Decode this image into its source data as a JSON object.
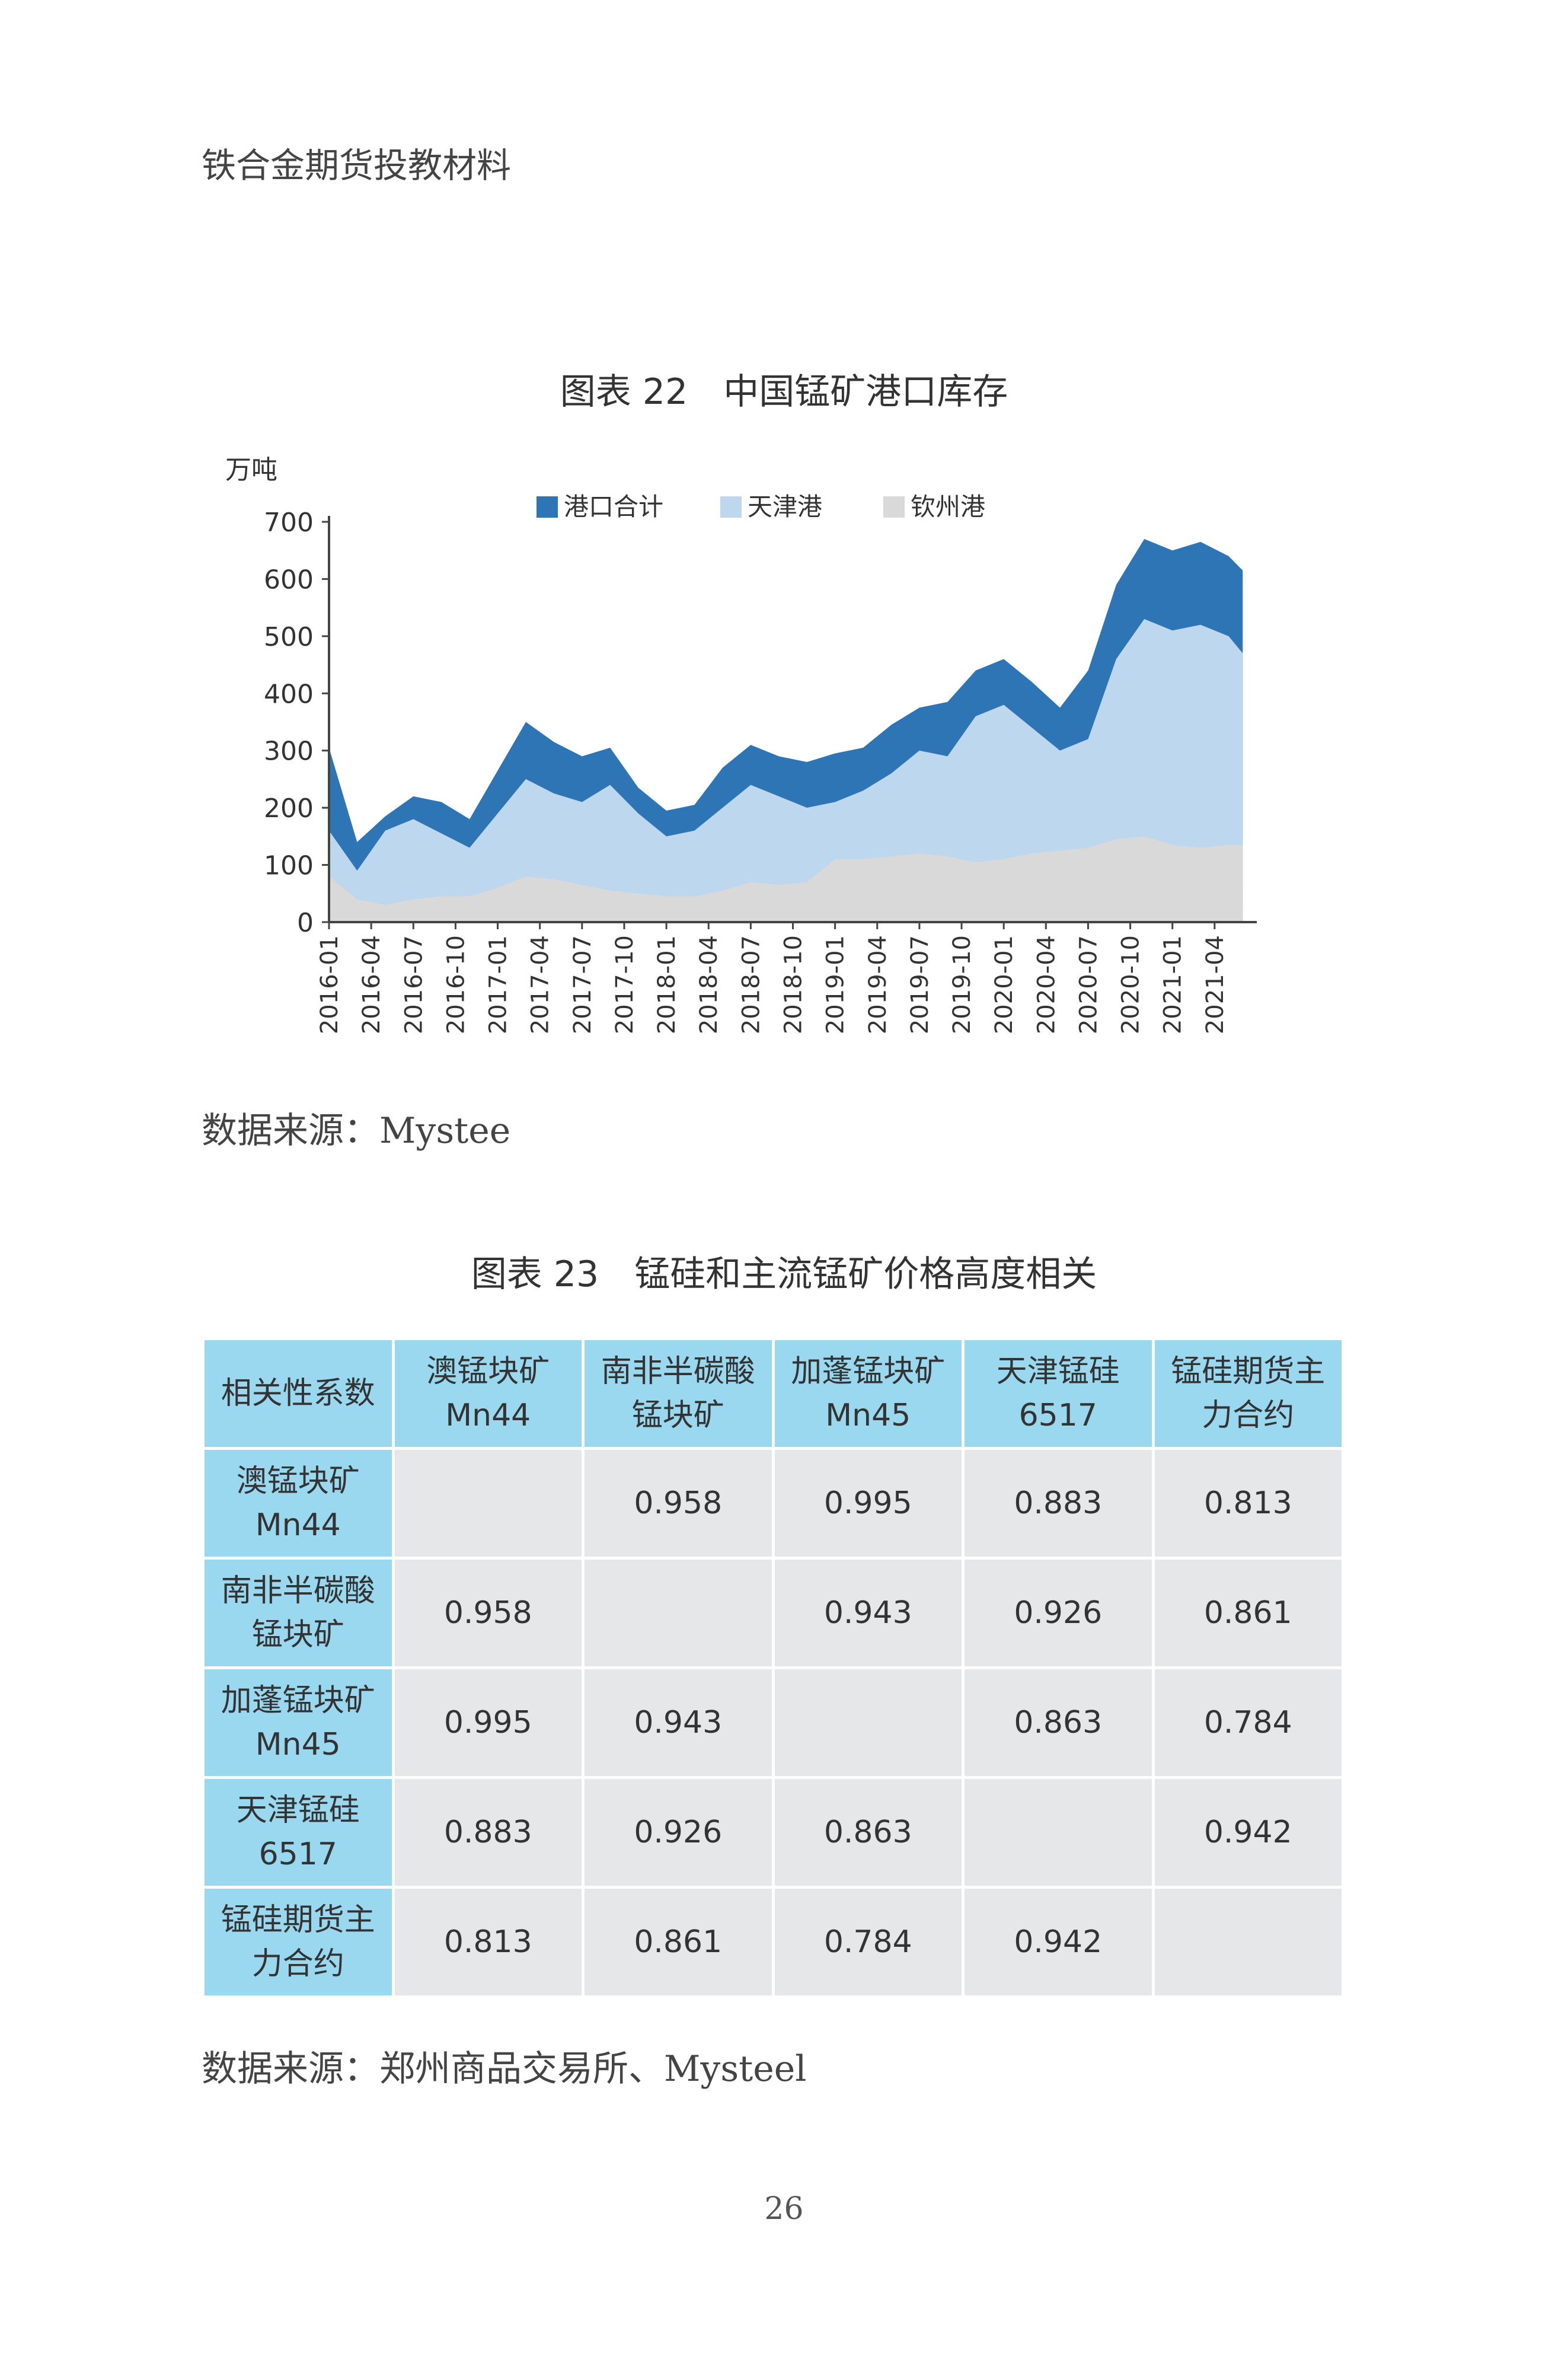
{
  "page": {
    "running_header": "铁合金期货投教材料",
    "page_number": "26"
  },
  "figure22": {
    "title": "图表 22　中国锰矿港口库存",
    "source": "数据来源：Mystee"
  },
  "chart_data": {
    "type": "area",
    "title": "图表 22　中国锰矿港口库存",
    "y_unit_label": "万吨",
    "ylim": [
      0,
      700
    ],
    "y_ticks": [
      0,
      100,
      200,
      300,
      400,
      500,
      600,
      700
    ],
    "x_ticks": [
      "2016-01",
      "2016-04",
      "2016-07",
      "2016-10",
      "2017-01",
      "2017-04",
      "2017-07",
      "2017-10",
      "2018-01",
      "2018-04",
      "2018-07",
      "2018-10",
      "2019-01",
      "2019-04",
      "2019-07",
      "2019-10",
      "2020-01",
      "2020-04",
      "2020-07",
      "2020-10",
      "2021-01",
      "2021-04"
    ],
    "legend_position": "top",
    "grid": false,
    "x": [
      "2016-01",
      "2016-03",
      "2016-05",
      "2016-07",
      "2016-09",
      "2016-11",
      "2017-01",
      "2017-03",
      "2017-05",
      "2017-07",
      "2017-09",
      "2017-11",
      "2018-01",
      "2018-03",
      "2018-05",
      "2018-07",
      "2018-09",
      "2018-11",
      "2019-01",
      "2019-03",
      "2019-05",
      "2019-07",
      "2019-09",
      "2019-11",
      "2020-01",
      "2020-03",
      "2020-05",
      "2020-07",
      "2020-09",
      "2020-11",
      "2021-01",
      "2021-03",
      "2021-05",
      "2021-06"
    ],
    "series": [
      {
        "name": "港口合计",
        "color": "#2e75b6",
        "values": [
          305,
          140,
          185,
          220,
          210,
          180,
          265,
          350,
          315,
          290,
          305,
          235,
          195,
          205,
          270,
          310,
          290,
          280,
          295,
          305,
          345,
          375,
          385,
          440,
          460,
          420,
          375,
          440,
          590,
          670,
          650,
          665,
          640,
          615
        ]
      },
      {
        "name": "天津港",
        "color": "#bdd7ee",
        "values": [
          160,
          90,
          160,
          180,
          155,
          130,
          190,
          250,
          225,
          210,
          240,
          190,
          150,
          160,
          200,
          240,
          220,
          200,
          210,
          230,
          260,
          300,
          290,
          360,
          380,
          340,
          300,
          320,
          460,
          530,
          510,
          520,
          500,
          470
        ]
      },
      {
        "name": "钦州港",
        "color": "#d9d9d9",
        "values": [
          80,
          40,
          30,
          40,
          45,
          45,
          60,
          80,
          75,
          65,
          55,
          50,
          45,
          45,
          55,
          70,
          65,
          70,
          110,
          110,
          115,
          120,
          115,
          105,
          110,
          120,
          125,
          130,
          145,
          150,
          135,
          130,
          135,
          135
        ]
      }
    ]
  },
  "figure23": {
    "title": "图表 23　锰硅和主流锰矿价格高度相关",
    "source": "数据来源：郑州商品交易所、Mysteel",
    "corner_label": "相关性系数",
    "column_headers": [
      "澳锰块矿 Mn44",
      "南非半碳酸 锰块矿",
      "加蓬锰块矿 Mn45",
      "天津锰硅 6517",
      "锰硅期货主 力合约"
    ],
    "rows": [
      {
        "label": "澳锰块矿 Mn44",
        "cells": [
          "",
          "0.958",
          "0.995",
          "0.883",
          "0.813"
        ]
      },
      {
        "label": "南非半碳酸 锰块矿",
        "cells": [
          "0.958",
          "",
          "0.943",
          "0.926",
          "0.861"
        ]
      },
      {
        "label": "加蓬锰块矿 Mn45",
        "cells": [
          "0.995",
          "0.943",
          "",
          "0.863",
          "0.784"
        ]
      },
      {
        "label": "天津锰硅 6517",
        "cells": [
          "0.883",
          "0.926",
          "0.863",
          "",
          "0.942"
        ]
      },
      {
        "label": "锰硅期货主 力合约",
        "cells": [
          "0.813",
          "0.861",
          "0.784",
          "0.942",
          ""
        ]
      }
    ]
  }
}
